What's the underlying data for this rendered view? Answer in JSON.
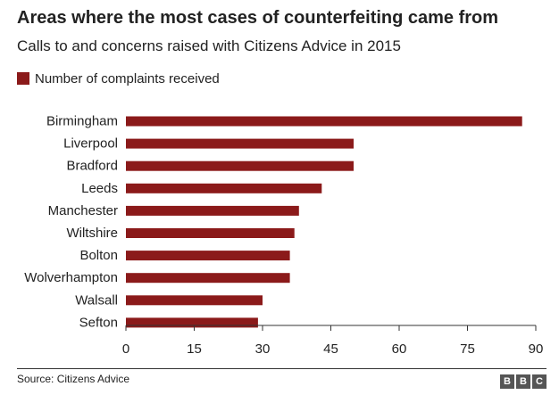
{
  "header": {
    "title": "Areas where the most cases of counterfeiting came from",
    "subtitle": "Calls to and concerns raised with Citizens Advice in 2015"
  },
  "chart_data": {
    "type": "bar",
    "orientation": "horizontal",
    "title": "",
    "xlabel": "",
    "ylabel": "",
    "categories": [
      "Birmingham",
      "Liverpool",
      "Bradford",
      "Leeds",
      "Manchester",
      "Wiltshire",
      "Bolton",
      "Wolverhampton",
      "Walsall",
      "Sefton"
    ],
    "series": [
      {
        "name": "Number of complaints received",
        "values": [
          87,
          50,
          50,
          43,
          38,
          37,
          36,
          36,
          30,
          29
        ]
      }
    ],
    "xlim": [
      0,
      90
    ],
    "xticks": [
      "0",
      "15",
      "30",
      "45",
      "60",
      "75",
      "90"
    ],
    "grid": false,
    "legend": "top-left",
    "bar_color": "#8b1a1a",
    "axis_color": "#333333"
  },
  "footer": {
    "source": "Source: Citizens Advice",
    "brand_letters": [
      "B",
      "B",
      "C"
    ]
  }
}
